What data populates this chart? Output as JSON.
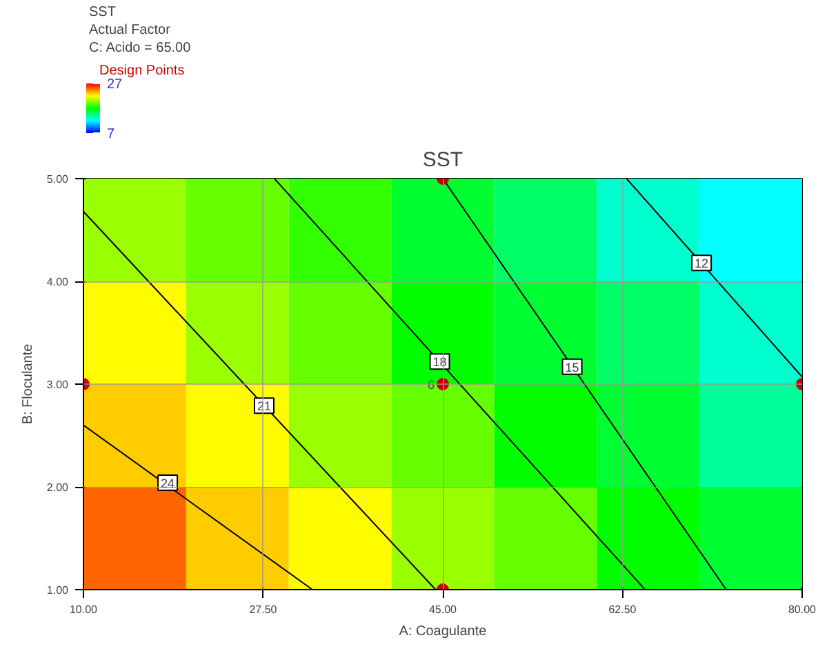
{
  "chart_data": {
    "type": "heatmap",
    "title": "SST",
    "xlabel": "A: Coagulante",
    "ylabel": "B: Floculante",
    "clabel": "SST",
    "annotations": [
      "C: Acido = 65.00",
      "Actual Factor",
      {
        "text": "24",
        "x": 18.2,
        "y": 2.04
      },
      {
        "text": "21",
        "x": 27.6,
        "y": 2.79
      },
      {
        "text": "18",
        "x": 44.7,
        "y": 3.22
      },
      {
        "text": "15",
        "x": 57.6,
        "y": 3.17
      },
      {
        "text": "12",
        "x": 70.2,
        "y": 4.18
      },
      {
        "text": "6",
        "x": 45,
        "y": 3
      }
    ],
    "xlim": [
      10,
      80
    ],
    "ylim": [
      1,
      5
    ],
    "xticks": [
      {
        "value": 10,
        "label": "10.00"
      },
      {
        "value": 27.5,
        "label": "27.50"
      },
      {
        "value": 45,
        "label": "45.00"
      },
      {
        "value": 62.5,
        "label": "62.50"
      },
      {
        "value": 80,
        "label": "80.00"
      }
    ],
    "yticks": [
      {
        "value": 1,
        "label": "1.00"
      },
      {
        "value": 2,
        "label": "2.00"
      },
      {
        "value": 3,
        "label": "3.00"
      },
      {
        "value": 4,
        "label": "4.00"
      },
      {
        "value": 5,
        "label": "5.00"
      }
    ],
    "clim": [
      7,
      27
    ],
    "cticks": [
      7,
      27
    ],
    "grid": true,
    "legend": "left",
    "cells": [
      [
        20,
        19,
        18,
        16,
        15,
        13,
        12
      ],
      [
        22,
        20,
        19,
        17,
        16,
        15,
        13
      ],
      [
        23,
        22,
        20,
        19,
        17,
        16,
        14
      ],
      [
        25,
        23,
        22,
        20,
        19,
        17,
        16
      ]
    ],
    "series": [
      {
        "type": "line",
        "color": "#000000",
        "x": [
          10,
          32.3
        ],
        "values": [
          2.6,
          1
        ]
      },
      {
        "type": "line",
        "color": "#000000",
        "x": [
          10,
          44.3
        ],
        "values": [
          4.68,
          1
        ]
      },
      {
        "type": "line",
        "color": "#000000",
        "x": [
          28.6,
          64.7
        ],
        "values": [
          5,
          1
        ]
      },
      {
        "type": "line",
        "color": "#000000",
        "x": [
          45,
          72.6
        ],
        "values": [
          5,
          1
        ]
      },
      {
        "type": "line",
        "color": "#000000",
        "x": [
          62.9,
          80
        ],
        "values": [
          5,
          3.07
        ]
      },
      {
        "type": "scatter",
        "name": "Design Points",
        "color": "#cc0000",
        "marker": "circle",
        "x": [
          10,
          45,
          45,
          45,
          80
        ],
        "values": [
          3,
          5,
          3,
          1,
          3
        ]
      }
    ]
  }
}
